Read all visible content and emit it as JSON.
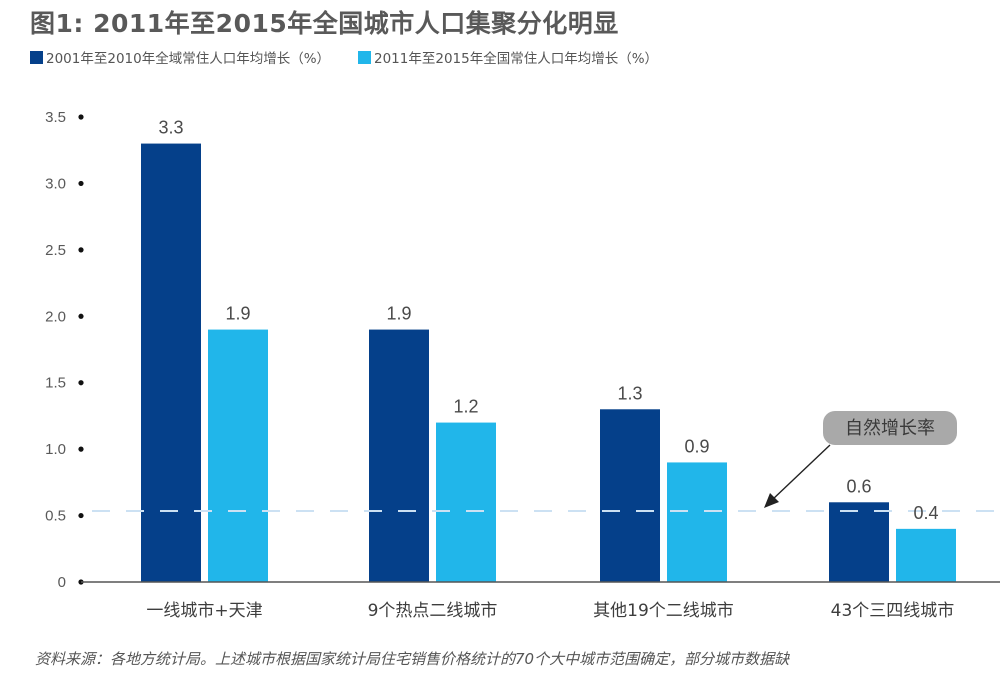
{
  "chart_data": {
    "type": "bar",
    "title": "图1: 2011年至2015年全国城市人口集聚分化明显",
    "categories": [
      "一线城市+天津",
      "9个热点二线城市",
      "其他19个二线城市",
      "43个三四线城市"
    ],
    "series": [
      {
        "name": "2001年至2010年全域常住人口年均增长（%）",
        "color": "#05408a",
        "values": [
          3.3,
          1.9,
          1.3,
          0.6
        ],
        "labels": [
          "3.3",
          "1.9",
          "1.3",
          "0.6"
        ]
      },
      {
        "name": "2011年至2015年全国常住人口年均增长（%）",
        "color": "#21b6ea",
        "values": [
          1.9,
          1.2,
          0.9,
          0.4
        ],
        "labels": [
          "1.9",
          "1.2",
          "0.9",
          "0.4"
        ]
      }
    ],
    "xlabel": "",
    "ylabel": "",
    "ylim": [
      0,
      3.5
    ],
    "yticks": [
      0,
      0.5,
      1.0,
      1.5,
      2.0,
      2.5,
      3.0,
      3.5
    ],
    "ytick_labels": [
      "0",
      "0.5",
      "1.0",
      "1.5",
      "2.0",
      "2.5",
      "3.0",
      "3.5"
    ],
    "grid": false,
    "legend_position": "top-left",
    "reference_line": {
      "value": 0.55,
      "style": "dashed",
      "color": "#b9d3ea",
      "label": "自然增长率"
    },
    "annotations": [
      {
        "text": "自然增长率",
        "points_to": "reference_line"
      }
    ],
    "source": "资料来源：各地方统计局。上述城市根据国家统计局住宅销售价格统计的70个大中城市范围确定，部分城市数据缺"
  }
}
